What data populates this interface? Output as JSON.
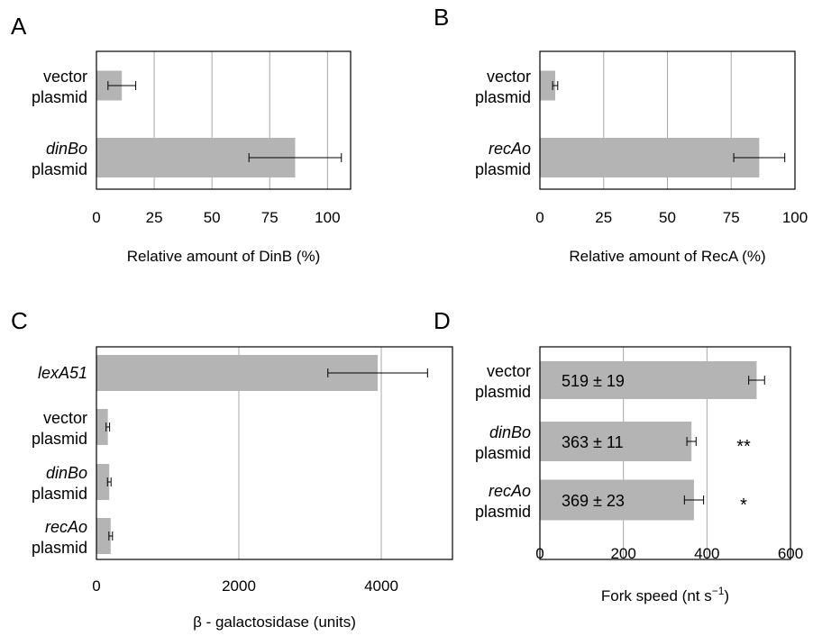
{
  "chart_data": [
    {
      "type": "bar",
      "panel": "A",
      "orientation": "horizontal",
      "categories": [
        {
          "italic": "",
          "rest": "vector",
          "line2": "plasmid"
        },
        {
          "italic": "dinBo",
          "rest": "",
          "line2": "plasmid"
        }
      ],
      "values": [
        11,
        86
      ],
      "errors": [
        6,
        20
      ],
      "xlabel": "Relative amount of DinB (%)",
      "xlim": [
        0,
        110
      ],
      "xticks": [
        0,
        25,
        50,
        75,
        100
      ],
      "grid": true
    },
    {
      "type": "bar",
      "panel": "B",
      "orientation": "horizontal",
      "categories": [
        {
          "italic": "",
          "rest": "vector",
          "line2": "plasmid"
        },
        {
          "italic": "recAo",
          "rest": "",
          "line2": "plasmid"
        }
      ],
      "values": [
        6,
        86
      ],
      "errors": [
        1,
        10
      ],
      "xlabel": "Relative amount of RecA (%)",
      "xlim": [
        0,
        100
      ],
      "xticks": [
        0,
        25,
        50,
        75,
        100
      ],
      "grid": true
    },
    {
      "type": "bar",
      "panel": "C",
      "orientation": "horizontal",
      "categories": [
        {
          "italic": "lexA51",
          "rest": "",
          "line2": ""
        },
        {
          "italic": "",
          "rest": "vector",
          "line2": "plasmid"
        },
        {
          "italic": "dinBo",
          "rest": "",
          "line2": "plasmid"
        },
        {
          "italic": "recAo",
          "rest": "",
          "line2": "plasmid"
        }
      ],
      "values": [
        3950,
        160,
        180,
        200
      ],
      "errors": [
        700,
        25,
        25,
        25
      ],
      "xlabel": "β - galactosidase  (units)",
      "xlim": [
        0,
        5000
      ],
      "xticks": [
        0,
        2000,
        4000
      ],
      "grid": true
    },
    {
      "type": "bar",
      "panel": "D",
      "orientation": "horizontal",
      "categories": [
        {
          "italic": "",
          "rest": "vector",
          "line2": "plasmid"
        },
        {
          "italic": "dinBo",
          "rest": "",
          "line2": "plasmid"
        },
        {
          "italic": "recAo",
          "rest": "",
          "line2": "plasmid"
        }
      ],
      "values": [
        519,
        363,
        369
      ],
      "errors": [
        19,
        11,
        23
      ],
      "data_labels": [
        "519 ± 19",
        "363 ± 11",
        "369 ± 23"
      ],
      "significance": [
        "",
        "**",
        "*"
      ],
      "xlabel": "Fork speed (nt s",
      "xlabel_sup": "−1",
      "xlabel_end": ")",
      "xlim": [
        0,
        600
      ],
      "xticks": [
        0,
        200,
        400,
        600
      ],
      "grid": true
    }
  ],
  "style": {
    "bar_color": "#b4b4b4",
    "grid_color": "#a6a6a6",
    "axis_color": "#000000",
    "text_color": "#000000"
  }
}
